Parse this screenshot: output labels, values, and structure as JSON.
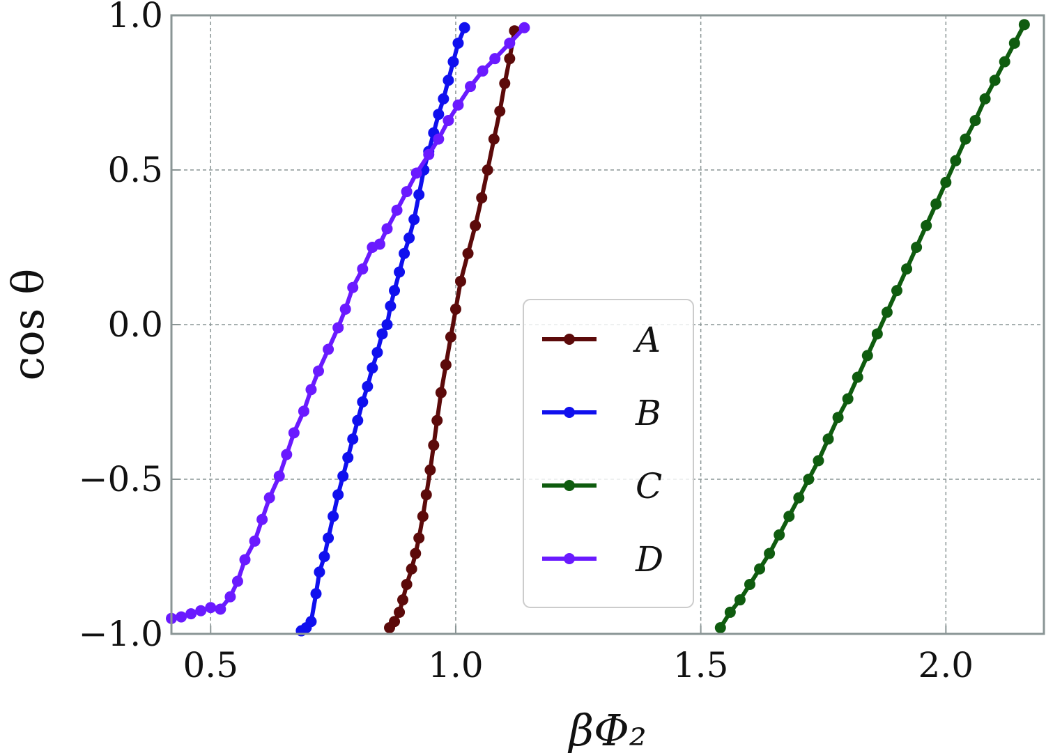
{
  "chart_data": {
    "type": "line",
    "xlabel": "βΦ₂",
    "ylabel": "cos θ",
    "xlim": [
      0.42,
      2.2
    ],
    "ylim": [
      -1.0,
      1.0
    ],
    "xticks": [
      "0.5",
      "1.0",
      "1.5",
      "2.0"
    ],
    "yticks": [
      "−1.0",
      "−0.5",
      "0.0",
      "0.5",
      "1.0"
    ],
    "grid": true,
    "legend_position": "center",
    "series": [
      {
        "name": "A",
        "color": "#5c0a0a",
        "points": [
          [
            0.865,
            -0.98
          ],
          [
            0.875,
            -0.96
          ],
          [
            0.885,
            -0.93
          ],
          [
            0.892,
            -0.89
          ],
          [
            0.9,
            -0.84
          ],
          [
            0.91,
            -0.79
          ],
          [
            0.918,
            -0.74
          ],
          [
            0.925,
            -0.69
          ],
          [
            0.933,
            -0.62
          ],
          [
            0.94,
            -0.55
          ],
          [
            0.948,
            -0.47
          ],
          [
            0.955,
            -0.39
          ],
          [
            0.962,
            -0.31
          ],
          [
            0.97,
            -0.22
          ],
          [
            0.98,
            -0.13
          ],
          [
            0.99,
            -0.04
          ],
          [
            1.0,
            0.05
          ],
          [
            1.01,
            0.14
          ],
          [
            1.025,
            0.23
          ],
          [
            1.04,
            0.32
          ],
          [
            1.053,
            0.41
          ],
          [
            1.065,
            0.5
          ],
          [
            1.078,
            0.6
          ],
          [
            1.09,
            0.69
          ],
          [
            1.1,
            0.78
          ],
          [
            1.11,
            0.86
          ],
          [
            1.12,
            0.95
          ]
        ]
      },
      {
        "name": "B",
        "color": "#1010ee",
        "points": [
          [
            0.685,
            -0.99
          ],
          [
            0.695,
            -0.98
          ],
          [
            0.705,
            -0.96
          ],
          [
            0.715,
            -0.87
          ],
          [
            0.722,
            -0.8
          ],
          [
            0.732,
            -0.75
          ],
          [
            0.74,
            -0.69
          ],
          [
            0.75,
            -0.62
          ],
          [
            0.76,
            -0.55
          ],
          [
            0.77,
            -0.49
          ],
          [
            0.78,
            -0.43
          ],
          [
            0.79,
            -0.37
          ],
          [
            0.8,
            -0.31
          ],
          [
            0.81,
            -0.25
          ],
          [
            0.82,
            -0.2
          ],
          [
            0.83,
            -0.14
          ],
          [
            0.84,
            -0.09
          ],
          [
            0.85,
            -0.03
          ],
          [
            0.86,
            0.0
          ],
          [
            0.867,
            0.06
          ],
          [
            0.875,
            0.11
          ],
          [
            0.885,
            0.17
          ],
          [
            0.895,
            0.23
          ],
          [
            0.905,
            0.28
          ],
          [
            0.915,
            0.34
          ],
          [
            0.925,
            0.42
          ],
          [
            0.935,
            0.5
          ],
          [
            0.945,
            0.56
          ],
          [
            0.955,
            0.62
          ],
          [
            0.965,
            0.68
          ],
          [
            0.975,
            0.73
          ],
          [
            0.985,
            0.79
          ],
          [
            0.995,
            0.85
          ],
          [
            1.005,
            0.91
          ],
          [
            1.018,
            0.96
          ]
        ]
      },
      {
        "name": "C",
        "color": "#0f5c0f",
        "points": [
          [
            1.54,
            -0.98
          ],
          [
            1.56,
            -0.93
          ],
          [
            1.58,
            -0.89
          ],
          [
            1.6,
            -0.84
          ],
          [
            1.62,
            -0.79
          ],
          [
            1.64,
            -0.74
          ],
          [
            1.66,
            -0.68
          ],
          [
            1.68,
            -0.62
          ],
          [
            1.7,
            -0.56
          ],
          [
            1.72,
            -0.5
          ],
          [
            1.74,
            -0.44
          ],
          [
            1.76,
            -0.37
          ],
          [
            1.78,
            -0.3
          ],
          [
            1.8,
            -0.24
          ],
          [
            1.82,
            -0.17
          ],
          [
            1.84,
            -0.1
          ],
          [
            1.86,
            -0.03
          ],
          [
            1.88,
            0.04
          ],
          [
            1.9,
            0.11
          ],
          [
            1.92,
            0.18
          ],
          [
            1.94,
            0.25
          ],
          [
            1.96,
            0.32
          ],
          [
            1.98,
            0.39
          ],
          [
            2.0,
            0.46
          ],
          [
            2.02,
            0.53
          ],
          [
            2.04,
            0.6
          ],
          [
            2.06,
            0.66
          ],
          [
            2.08,
            0.73
          ],
          [
            2.1,
            0.79
          ],
          [
            2.12,
            0.85
          ],
          [
            2.14,
            0.91
          ],
          [
            2.16,
            0.97
          ]
        ]
      },
      {
        "name": "D",
        "color": "#6a1aff",
        "points": [
          [
            0.42,
            -0.95
          ],
          [
            0.44,
            -0.945
          ],
          [
            0.46,
            -0.935
          ],
          [
            0.48,
            -0.925
          ],
          [
            0.5,
            -0.915
          ],
          [
            0.52,
            -0.92
          ],
          [
            0.54,
            -0.88
          ],
          [
            0.555,
            -0.83
          ],
          [
            0.57,
            -0.76
          ],
          [
            0.59,
            -0.7
          ],
          [
            0.605,
            -0.63
          ],
          [
            0.62,
            -0.56
          ],
          [
            0.64,
            -0.49
          ],
          [
            0.655,
            -0.42
          ],
          [
            0.67,
            -0.35
          ],
          [
            0.69,
            -0.28
          ],
          [
            0.705,
            -0.21
          ],
          [
            0.72,
            -0.15
          ],
          [
            0.74,
            -0.08
          ],
          [
            0.76,
            -0.01
          ],
          [
            0.775,
            0.05
          ],
          [
            0.79,
            0.12
          ],
          [
            0.81,
            0.18
          ],
          [
            0.83,
            0.25
          ],
          [
            0.845,
            0.26
          ],
          [
            0.86,
            0.31
          ],
          [
            0.88,
            0.37
          ],
          [
            0.9,
            0.43
          ],
          [
            0.92,
            0.49
          ],
          [
            0.945,
            0.55
          ],
          [
            0.965,
            0.6
          ],
          [
            0.985,
            0.66
          ],
          [
            1.005,
            0.71
          ],
          [
            1.03,
            0.77
          ],
          [
            1.055,
            0.82
          ],
          [
            1.08,
            0.86
          ],
          [
            1.11,
            0.91
          ],
          [
            1.14,
            0.96
          ]
        ]
      }
    ]
  }
}
